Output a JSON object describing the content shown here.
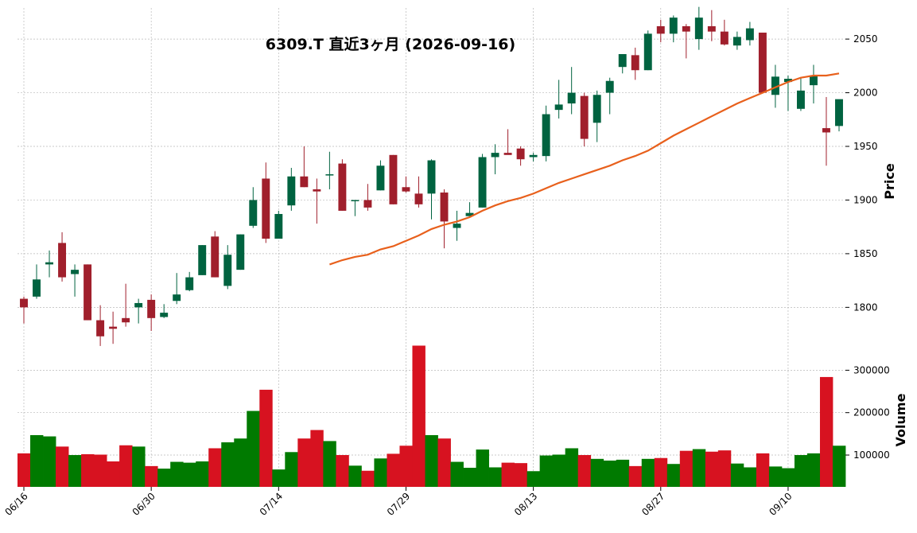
{
  "chart_data": {
    "type": "candlestick",
    "title": "6309.T 直近3ヶ月 (2026-09-16)",
    "price_label": "Price",
    "volume_label": "Volume",
    "price_ticks": [
      1800,
      1850,
      1900,
      1950,
      2000,
      2050
    ],
    "volume_ticks": [
      100000,
      200000,
      300000
    ],
    "volume_tick_labels": [
      "100000",
      "200000",
      "300000"
    ],
    "price_ylim": [
      1758,
      2079
    ],
    "volume_ylim": [
      25000,
      342000
    ],
    "x_tick_labels": [
      {
        "index": 0,
        "label": "06/16"
      },
      {
        "index": 10,
        "label": "06/30"
      },
      {
        "index": 20,
        "label": "07/14"
      },
      {
        "index": 30,
        "label": "07/29"
      },
      {
        "index": 40,
        "label": "08/13"
      },
      {
        "index": 50,
        "label": "08/27"
      },
      {
        "index": 60,
        "label": "09/10"
      }
    ],
    "colors": {
      "up": "#006340",
      "down": "#a01f2c",
      "ma": "#e8601c",
      "vol_up": "#007a00",
      "vol_down": "#d71220"
    },
    "ohlc": [
      [
        1808,
        1810,
        1785,
        1800
      ],
      [
        1810,
        1840,
        1808,
        1826
      ],
      [
        1840,
        1853,
        1828,
        1842
      ],
      [
        1860,
        1870,
        1824,
        1828
      ],
      [
        1831,
        1840,
        1810,
        1835
      ],
      [
        1840,
        1840,
        1788,
        1788
      ],
      [
        1788,
        1802,
        1764,
        1773
      ],
      [
        1782,
        1796,
        1766,
        1780
      ],
      [
        1790,
        1822,
        1782,
        1786
      ],
      [
        1800,
        1808,
        1785,
        1804
      ],
      [
        1807,
        1812,
        1778,
        1790
      ],
      [
        1791,
        1803,
        1790,
        1795
      ],
      [
        1806,
        1832,
        1803,
        1812
      ],
      [
        1816,
        1833,
        1815,
        1828
      ],
      [
        1830,
        1858,
        1830,
        1858
      ],
      [
        1866,
        1871,
        1828,
        1828
      ],
      [
        1820,
        1858,
        1817,
        1849
      ],
      [
        1835,
        1868,
        1835,
        1868
      ],
      [
        1876,
        1912,
        1874,
        1900
      ],
      [
        1920,
        1935,
        1860,
        1864
      ],
      [
        1864,
        1890,
        1864,
        1887
      ],
      [
        1895,
        1930,
        1890,
        1922
      ],
      [
        1922,
        1950,
        1912,
        1912
      ],
      [
        1910,
        1920,
        1878,
        1908
      ],
      [
        1924,
        1945,
        1910,
        1924
      ],
      [
        1934,
        1938,
        1890,
        1890
      ],
      [
        1900,
        1900,
        1885,
        1900
      ],
      [
        1900,
        1915,
        1890,
        1893
      ],
      [
        1909,
        1937,
        1909,
        1932
      ],
      [
        1942,
        1942,
        1896,
        1896
      ],
      [
        1912,
        1922,
        1907,
        1908
      ],
      [
        1906,
        1922,
        1893,
        1896
      ],
      [
        1906,
        1938,
        1882,
        1937
      ],
      [
        1907,
        1910,
        1855,
        1880
      ],
      [
        1874,
        1890,
        1862,
        1878
      ],
      [
        1885,
        1898,
        1885,
        1888
      ],
      [
        1893,
        1943,
        1893,
        1940
      ],
      [
        1940,
        1952,
        1924,
        1944
      ],
      [
        1944,
        1966,
        1943,
        1942
      ],
      [
        1948,
        1950,
        1932,
        1938
      ],
      [
        1940,
        1944,
        1936,
        1942
      ],
      [
        1941,
        1988,
        1936,
        1980
      ],
      [
        1984,
        2012,
        1976,
        1989
      ],
      [
        1990,
        2024,
        1980,
        2000
      ],
      [
        1997,
        2000,
        1950,
        1957
      ],
      [
        1972,
        2002,
        1954,
        1998
      ],
      [
        2000,
        2014,
        1980,
        2011
      ],
      [
        2024,
        2034,
        2018,
        2036
      ],
      [
        2035,
        2042,
        2012,
        2021
      ],
      [
        2021,
        2058,
        2021,
        2055
      ],
      [
        2062,
        2068,
        2047,
        2055
      ],
      [
        2055,
        2072,
        2047,
        2070
      ],
      [
        2062,
        2064,
        2032,
        2057
      ],
      [
        2050,
        2080,
        2040,
        2070
      ],
      [
        2062,
        2077,
        2048,
        2057
      ],
      [
        2057,
        2068,
        2044,
        2045
      ],
      [
        2044,
        2057,
        2040,
        2052
      ],
      [
        2049,
        2066,
        2044,
        2060
      ],
      [
        2056,
        2056,
        2000,
        2000
      ],
      [
        1998,
        2026,
        1986,
        2015
      ],
      [
        2010,
        2016,
        1983,
        2013
      ],
      [
        1985,
        2014,
        1983,
        2002
      ],
      [
        2007,
        2026,
        1990,
        2016
      ],
      [
        1967,
        1996,
        1932,
        1963
      ],
      [
        1969,
        1993,
        1964,
        1994
      ]
    ],
    "volume": [
      104000,
      147000,
      144000,
      120000,
      100000,
      102000,
      101000,
      85000,
      123000,
      120000,
      74000,
      68000,
      84000,
      82000,
      85000,
      116000,
      130000,
      139000,
      204000,
      254000,
      66000,
      107000,
      139000,
      159000,
      133000,
      100000,
      75000,
      63000,
      92000,
      103000,
      122000,
      358000,
      147000,
      139000,
      84000,
      70000,
      113000,
      71000,
      82000,
      81000,
      62000,
      99000,
      101000,
      116000,
      100000,
      91000,
      87000,
      89000,
      74000,
      91000,
      93000,
      79000,
      110000,
      114000,
      108000,
      111000,
      80000,
      71000,
      104000,
      73000,
      69000,
      100000,
      104000,
      284000,
      122000
    ],
    "ma_start_index": 24,
    "ma": [
      1840,
      1844,
      1847,
      1849,
      1854,
      1857,
      1862,
      1867,
      1873,
      1877,
      1880,
      1884,
      1890,
      1895,
      1899,
      1902,
      1906,
      1911,
      1916,
      1920,
      1924,
      1928,
      1932,
      1937,
      1941,
      1946,
      1953,
      1960,
      1966,
      1972,
      1978,
      1984,
      1990,
      1995,
      2000,
      2005,
      2010,
      2014,
      2016,
      2016,
      2018
    ]
  }
}
